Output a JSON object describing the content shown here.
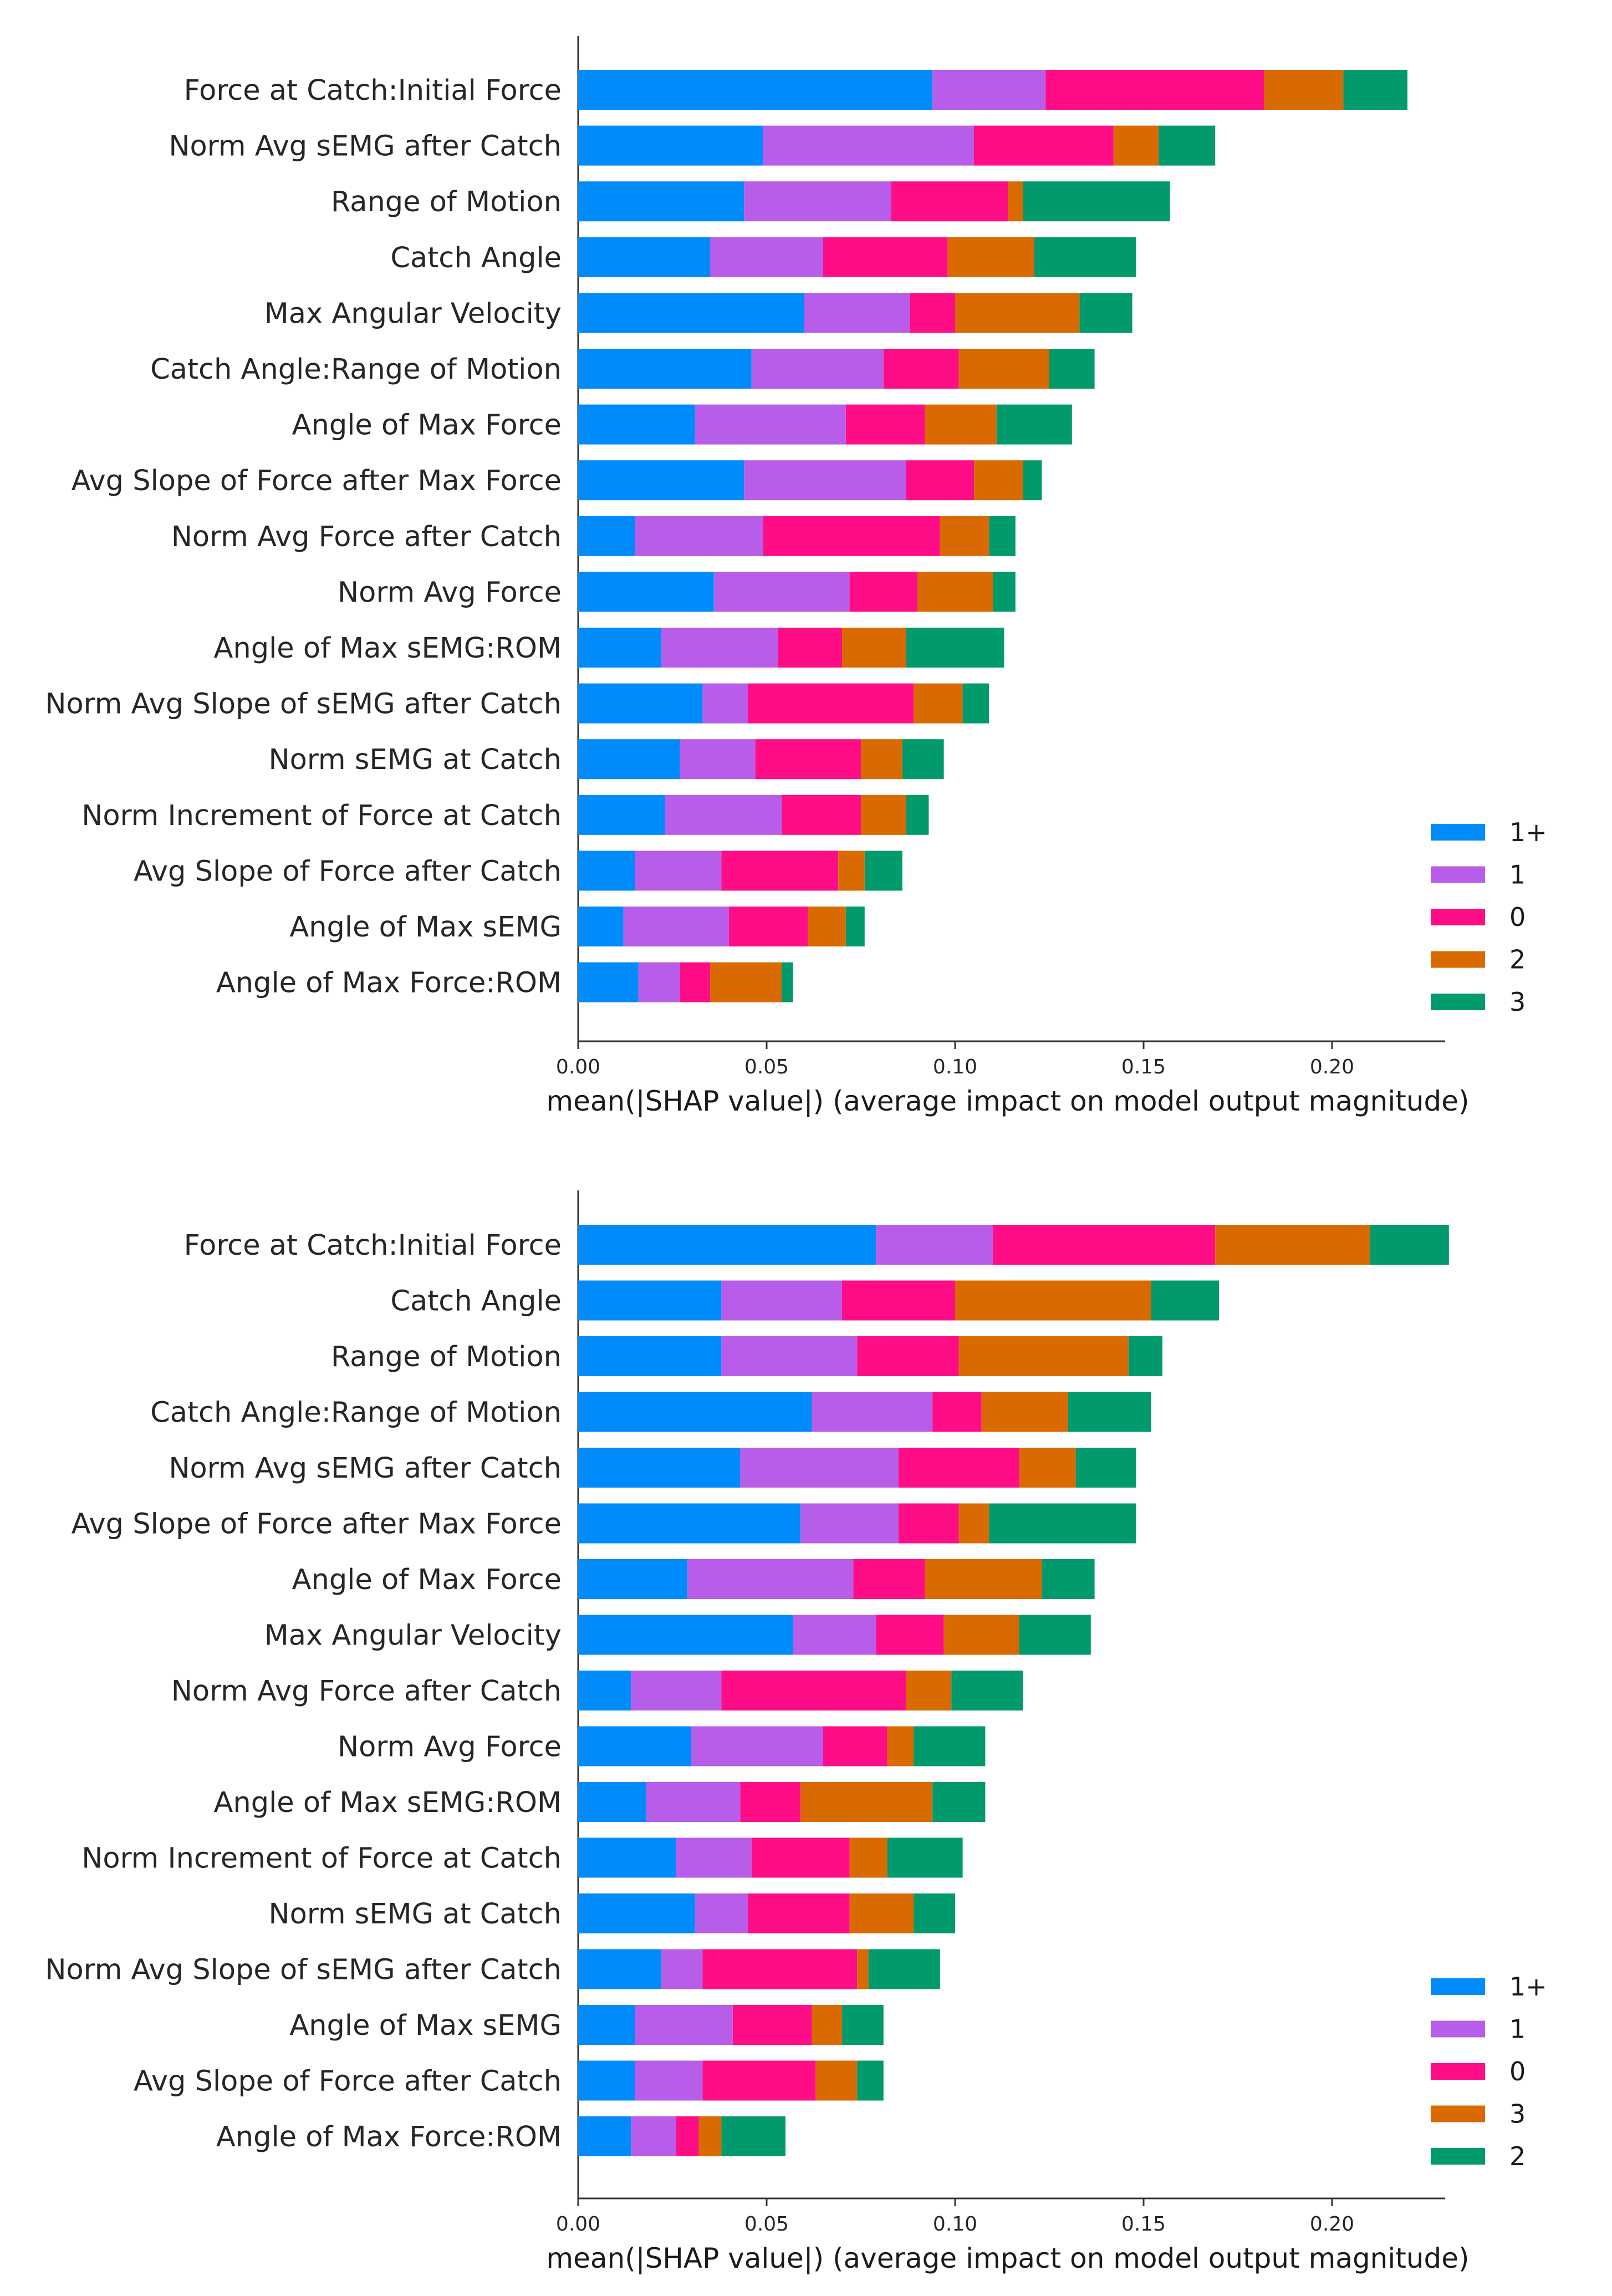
{
  "figure_title": "",
  "chart_data": [
    {
      "type": "bar",
      "orientation": "horizontal",
      "stacked": true,
      "title": "",
      "xlabel": "mean(|SHAP value|) (average impact on model output magnitude)",
      "ylabel": "",
      "xlim": [
        0,
        0.23
      ],
      "xticks": [
        "0.00",
        "0.05",
        "0.10",
        "0.15",
        "0.20"
      ],
      "xtick_values": [
        0,
        0.05,
        0.1,
        0.15,
        0.2
      ],
      "legend_position": "bottom-right",
      "categories": [
        "Force at Catch:Initial Force",
        "Norm Avg sEMG after Catch",
        "Range of Motion",
        "Catch Angle",
        "Max Angular Velocity",
        "Catch Angle:Range of Motion",
        "Angle of Max Force",
        "Avg Slope of Force after Max Force",
        "Norm Avg Force after Catch",
        "Norm Avg Force",
        "Angle of Max sEMG:ROM",
        "Norm Avg Slope of sEMG after Catch",
        "Norm sEMG at Catch",
        "Norm Increment of Force at Catch",
        "Avg Slope of Force after Catch",
        "Angle of Max sEMG",
        "Angle of Max Force:ROM"
      ],
      "series": [
        {
          "name": "1+",
          "color": "#008bfb",
          "values": [
            0.094,
            0.049,
            0.044,
            0.035,
            0.06,
            0.046,
            0.031,
            0.044,
            0.015,
            0.036,
            0.022,
            0.033,
            0.027,
            0.023,
            0.015,
            0.012,
            0.016
          ]
        },
        {
          "name": "1",
          "color": "#b75de9",
          "values": [
            0.03,
            0.056,
            0.039,
            0.03,
            0.028,
            0.035,
            0.04,
            0.043,
            0.034,
            0.036,
            0.031,
            0.012,
            0.02,
            0.031,
            0.023,
            0.028,
            0.011
          ]
        },
        {
          "name": "0",
          "color": "#ff0d87",
          "values": [
            0.058,
            0.037,
            0.031,
            0.033,
            0.012,
            0.02,
            0.021,
            0.018,
            0.047,
            0.018,
            0.017,
            0.044,
            0.028,
            0.021,
            0.031,
            0.021,
            0.008
          ]
        },
        {
          "name": "2",
          "color": "#d96a00",
          "values": [
            0.021,
            0.012,
            0.004,
            0.023,
            0.033,
            0.024,
            0.019,
            0.013,
            0.013,
            0.02,
            0.017,
            0.013,
            0.011,
            0.012,
            0.007,
            0.01,
            0.019
          ]
        },
        {
          "name": "3",
          "color": "#009a6d",
          "values": [
            0.017,
            0.015,
            0.039,
            0.027,
            0.014,
            0.012,
            0.02,
            0.005,
            0.007,
            0.006,
            0.026,
            0.007,
            0.011,
            0.006,
            0.01,
            0.005,
            0.003
          ]
        }
      ]
    },
    {
      "type": "bar",
      "orientation": "horizontal",
      "stacked": true,
      "title": "",
      "xlabel": "mean(|SHAP value|) (average impact on model output magnitude)",
      "ylabel": "",
      "xlim": [
        0,
        0.23
      ],
      "xticks": [
        "0.00",
        "0.05",
        "0.10",
        "0.15",
        "0.20"
      ],
      "xtick_values": [
        0,
        0.05,
        0.1,
        0.15,
        0.2
      ],
      "legend_position": "bottom-right",
      "categories": [
        "Force at Catch:Initial Force",
        "Catch Angle",
        "Range of Motion",
        "Catch Angle:Range of Motion",
        "Norm Avg sEMG after Catch",
        "Avg Slope of Force after Max Force",
        "Angle of Max Force",
        "Max Angular Velocity",
        "Norm Avg Force after Catch",
        "Norm Avg Force",
        "Angle of Max sEMG:ROM",
        "Norm Increment of Force at Catch",
        "Norm sEMG at Catch",
        "Norm Avg Slope of sEMG after Catch",
        "Angle of Max sEMG",
        "Avg Slope of Force after Catch",
        "Angle of Max Force:ROM"
      ],
      "series": [
        {
          "name": "1+",
          "color": "#008bfb",
          "values": [
            0.079,
            0.038,
            0.038,
            0.062,
            0.043,
            0.059,
            0.029,
            0.057,
            0.014,
            0.03,
            0.018,
            0.026,
            0.031,
            0.022,
            0.015,
            0.015,
            0.014
          ]
        },
        {
          "name": "1",
          "color": "#b75de9",
          "values": [
            0.031,
            0.032,
            0.036,
            0.032,
            0.042,
            0.026,
            0.044,
            0.022,
            0.024,
            0.035,
            0.025,
            0.02,
            0.014,
            0.011,
            0.026,
            0.018,
            0.012
          ]
        },
        {
          "name": "0",
          "color": "#ff0d87",
          "values": [
            0.059,
            0.03,
            0.027,
            0.013,
            0.032,
            0.016,
            0.019,
            0.018,
            0.049,
            0.017,
            0.016,
            0.026,
            0.027,
            0.041,
            0.021,
            0.03,
            0.006
          ]
        },
        {
          "name": "3",
          "color": "#d96a00",
          "values": [
            0.041,
            0.052,
            0.045,
            0.023,
            0.015,
            0.008,
            0.031,
            0.02,
            0.012,
            0.007,
            0.035,
            0.01,
            0.017,
            0.003,
            0.008,
            0.011,
            0.006
          ]
        },
        {
          "name": "2",
          "color": "#009a6d",
          "values": [
            0.021,
            0.018,
            0.009,
            0.022,
            0.016,
            0.039,
            0.014,
            0.019,
            0.019,
            0.019,
            0.014,
            0.02,
            0.011,
            0.019,
            0.011,
            0.007,
            0.017
          ]
        }
      ]
    }
  ]
}
